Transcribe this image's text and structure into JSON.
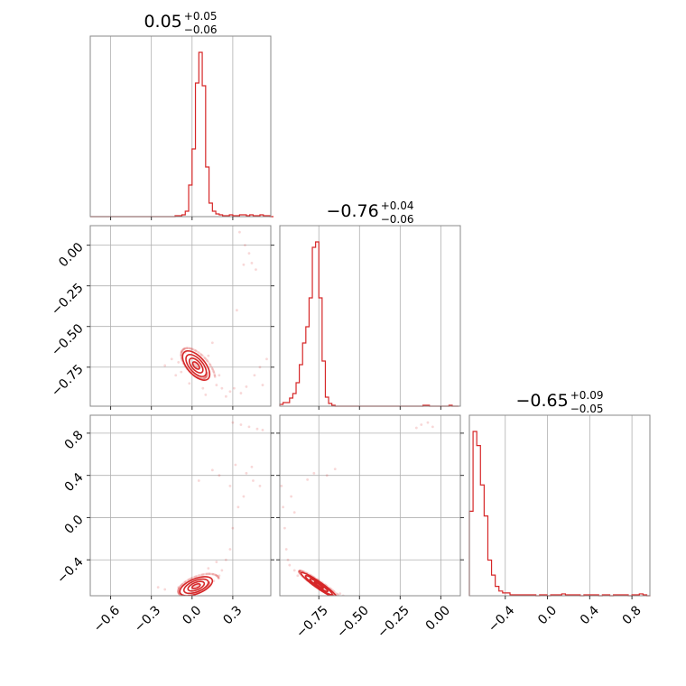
{
  "chart_data": {
    "type": "corner",
    "color": "#d62728",
    "parameters": [
      {
        "title": {
          "median": "0.05",
          "plus": "+0.05",
          "minus": "−0.06"
        },
        "range": [
          -0.75,
          0.58
        ],
        "ticks": [
          {
            "value": -0.6,
            "label": "−0.6"
          },
          {
            "value": -0.3,
            "label": "−0.3"
          },
          {
            "value": 0.0,
            "label": "0.0"
          },
          {
            "value": 0.3,
            "label": "0.3"
          }
        ],
        "hist_bins": [
          -0.75,
          -0.725,
          -0.7,
          -0.675,
          -0.65,
          -0.625,
          -0.6,
          -0.575,
          -0.55,
          -0.525,
          -0.5,
          -0.475,
          -0.45,
          -0.425,
          -0.4,
          -0.375,
          -0.35,
          -0.325,
          -0.3,
          -0.275,
          -0.25,
          -0.225,
          -0.2,
          -0.175,
          -0.15,
          -0.125,
          -0.1,
          -0.075,
          -0.05,
          -0.025,
          0.0,
          0.025,
          0.05,
          0.075,
          0.1,
          0.125,
          0.15,
          0.175,
          0.2,
          0.225,
          0.25,
          0.275,
          0.3,
          0.325,
          0.35,
          0.375,
          0.4,
          0.425,
          0.45,
          0.475,
          0.5,
          0.525,
          0.55,
          0.575,
          0.6
        ],
        "hist_counts": [
          0,
          0,
          0,
          0,
          0,
          0,
          0,
          0,
          0,
          0,
          0,
          0,
          0,
          0,
          0,
          0,
          0,
          0,
          0,
          0,
          0,
          0,
          0,
          0,
          0,
          1,
          1,
          2,
          6,
          35,
          75,
          148,
          182,
          145,
          55,
          15,
          6,
          3,
          2,
          1,
          1,
          2,
          1,
          1,
          2,
          2,
          1,
          2,
          1,
          1,
          2,
          1,
          1,
          0
        ]
      },
      {
        "title": {
          "median": "−0.76",
          "plus": "+0.04",
          "minus": "−0.06"
        },
        "range": [
          -0.99,
          0.12
        ],
        "ticks": [
          {
            "value": -0.75,
            "label": "−0.75"
          },
          {
            "value": -0.5,
            "label": "−0.50"
          },
          {
            "value": -0.25,
            "label": "−0.25"
          },
          {
            "value": 0.0,
            "label": "0.00"
          }
        ],
        "y_ticks": [
          {
            "value": 0.0,
            "label": "0.00"
          },
          {
            "value": -0.25,
            "label": "−0.25"
          },
          {
            "value": -0.5,
            "label": "−0.50"
          },
          {
            "value": -0.75,
            "label": "−0.75"
          }
        ],
        "hist_bins": [
          -0.99,
          -0.97,
          -0.95,
          -0.93,
          -0.91,
          -0.89,
          -0.87,
          -0.85,
          -0.83,
          -0.81,
          -0.79,
          -0.77,
          -0.75,
          -0.73,
          -0.71,
          -0.69,
          -0.67,
          -0.65,
          -0.63,
          -0.61,
          -0.59,
          -0.57,
          -0.55,
          -0.53,
          -0.51,
          -0.49,
          -0.47,
          -0.45,
          -0.43,
          -0.41,
          -0.39,
          -0.37,
          -0.35,
          -0.33,
          -0.31,
          -0.29,
          -0.27,
          -0.25,
          -0.23,
          -0.21,
          -0.19,
          -0.17,
          -0.15,
          -0.13,
          -0.11,
          -0.09,
          -0.07,
          -0.05,
          -0.03,
          -0.01,
          0.01,
          0.03,
          0.05,
          0.07,
          0.09,
          0.11
        ],
        "hist_counts": [
          2,
          4,
          4,
          9,
          14,
          26,
          46,
          70,
          88,
          120,
          176,
          182,
          120,
          50,
          10,
          3,
          1,
          0,
          0,
          0,
          0,
          0,
          0,
          0,
          0,
          0,
          0,
          0,
          0,
          0,
          0,
          0,
          0,
          0,
          0,
          0,
          0,
          0,
          0,
          0,
          0,
          0,
          0,
          0,
          1,
          1,
          0,
          0,
          0,
          0,
          0,
          0,
          1,
          0,
          0
        ]
      },
      {
        "title": {
          "median": "−0.65",
          "plus": "+0.09",
          "minus": "−0.05"
        },
        "range": [
          -0.74,
          0.97
        ],
        "ticks": [
          {
            "value": -0.4,
            "label": "−0.4"
          },
          {
            "value": 0.0,
            "label": "0.0"
          },
          {
            "value": 0.4,
            "label": "0.4"
          },
          {
            "value": 0.8,
            "label": "0.8"
          }
        ],
        "y_ticks": [
          {
            "value": 0.8,
            "label": "0.8"
          },
          {
            "value": 0.4,
            "label": "0.4"
          },
          {
            "value": 0.0,
            "label": "0.0"
          },
          {
            "value": -0.4,
            "label": "−0.4"
          }
        ],
        "hist_bins": [
          -0.74,
          -0.705,
          -0.67,
          -0.635,
          -0.6,
          -0.565,
          -0.53,
          -0.495,
          -0.46,
          -0.425,
          -0.39,
          -0.355,
          -0.32,
          -0.285,
          -0.25,
          -0.215,
          -0.18,
          -0.145,
          -0.11,
          -0.075,
          -0.04,
          -0.005,
          0.03,
          0.065,
          0.1,
          0.135,
          0.17,
          0.205,
          0.24,
          0.275,
          0.31,
          0.345,
          0.38,
          0.415,
          0.45,
          0.485,
          0.52,
          0.555,
          0.59,
          0.625,
          0.66,
          0.695,
          0.73,
          0.765,
          0.8,
          0.835,
          0.87,
          0.905,
          0.94,
          0.975
        ],
        "hist_counts": [
          90,
          175,
          160,
          118,
          85,
          38,
          22,
          10,
          5,
          3,
          3,
          1,
          1,
          1,
          1,
          1,
          1,
          1,
          0,
          1,
          1,
          0,
          1,
          1,
          1,
          2,
          1,
          1,
          1,
          1,
          0,
          1,
          1,
          1,
          1,
          0,
          1,
          1,
          0,
          1,
          1,
          1,
          1,
          0,
          1,
          1,
          2,
          1,
          0
        ]
      }
    ],
    "contours": [
      {
        "x_param": 0,
        "y_param": 1,
        "center": [
          0.03,
          -0.74
        ],
        "sigma": [
          0.05,
          0.045
        ],
        "rho": -0.6,
        "scatter": [
          [
            0.35,
            0.08
          ],
          [
            0.38,
            -0.12
          ],
          [
            0.42,
            -0.05
          ],
          [
            0.47,
            -0.15
          ],
          [
            0.33,
            -0.4
          ],
          [
            0.28,
            -0.9
          ],
          [
            0.31,
            -0.88
          ],
          [
            0.36,
            -0.91
          ],
          [
            0.4,
            -0.87
          ],
          [
            0.46,
            -0.8
          ],
          [
            0.5,
            -0.75
          ],
          [
            0.22,
            -0.88
          ],
          [
            0.18,
            -0.86
          ],
          [
            0.25,
            -0.93
          ],
          [
            -0.1,
            -0.72
          ],
          [
            -0.08,
            -0.78
          ],
          [
            -0.15,
            -0.7
          ],
          [
            -0.05,
            -0.66
          ],
          [
            0.12,
            -0.68
          ],
          [
            0.15,
            -0.6
          ],
          [
            -0.02,
            -0.85
          ],
          [
            0.08,
            -0.88
          ],
          [
            0.2,
            -0.8
          ],
          [
            0.52,
            -0.86
          ],
          [
            0.55,
            -0.7
          ],
          [
            0.44,
            -0.11
          ],
          [
            0.39,
            0.0
          ],
          [
            -0.2,
            -0.74
          ],
          [
            -0.12,
            -0.8
          ],
          [
            0.1,
            -0.92
          ]
        ]
      },
      {
        "x_param": 0,
        "y_param": 2,
        "center": [
          0.03,
          -0.65
        ],
        "sigma": [
          0.06,
          0.045
        ],
        "rho": 0.55,
        "scatter": [
          [
            0.3,
            0.9
          ],
          [
            0.36,
            0.88
          ],
          [
            0.42,
            0.86
          ],
          [
            0.48,
            0.84
          ],
          [
            0.52,
            0.83
          ],
          [
            0.4,
            0.42
          ],
          [
            0.45,
            0.35
          ],
          [
            0.5,
            0.3
          ],
          [
            0.38,
            0.2
          ],
          [
            0.34,
            0.1
          ],
          [
            0.3,
            -0.1
          ],
          [
            0.28,
            -0.3
          ],
          [
            0.25,
            -0.4
          ],
          [
            0.22,
            -0.5
          ],
          [
            0.2,
            -0.55
          ],
          [
            0.16,
            -0.6
          ],
          [
            -0.1,
            -0.66
          ],
          [
            -0.2,
            -0.68
          ],
          [
            -0.25,
            -0.66
          ],
          [
            0.12,
            -0.48
          ],
          [
            0.18,
            -0.42
          ],
          [
            0.15,
            0.45
          ],
          [
            0.2,
            0.4
          ],
          [
            0.32,
            0.5
          ],
          [
            0.44,
            0.48
          ],
          [
            0.05,
            0.35
          ],
          [
            0.28,
            0.3
          ]
        ]
      },
      {
        "x_param": 1,
        "y_param": 2,
        "center": [
          -0.75,
          -0.64
        ],
        "sigma": [
          0.055,
          0.06
        ],
        "rho": -0.95,
        "scatter": [
          [
            -0.98,
            0.3
          ],
          [
            -0.97,
            0.1
          ],
          [
            -0.96,
            -0.1
          ],
          [
            -0.95,
            -0.3
          ],
          [
            -0.94,
            -0.4
          ],
          [
            -0.93,
            -0.45
          ],
          [
            -0.9,
            -0.5
          ],
          [
            -0.88,
            -0.55
          ],
          [
            -0.65,
            0.46
          ],
          [
            -0.7,
            0.4
          ],
          [
            -0.78,
            0.42
          ],
          [
            -0.82,
            0.36
          ],
          [
            -0.12,
            0.88
          ],
          [
            -0.08,
            0.9
          ],
          [
            -0.05,
            0.86
          ],
          [
            -0.15,
            0.85
          ],
          [
            -0.6,
            -0.74
          ],
          [
            -0.62,
            -0.72
          ],
          [
            -0.92,
            0.2
          ],
          [
            -0.9,
            0.05
          ]
        ]
      }
    ]
  }
}
